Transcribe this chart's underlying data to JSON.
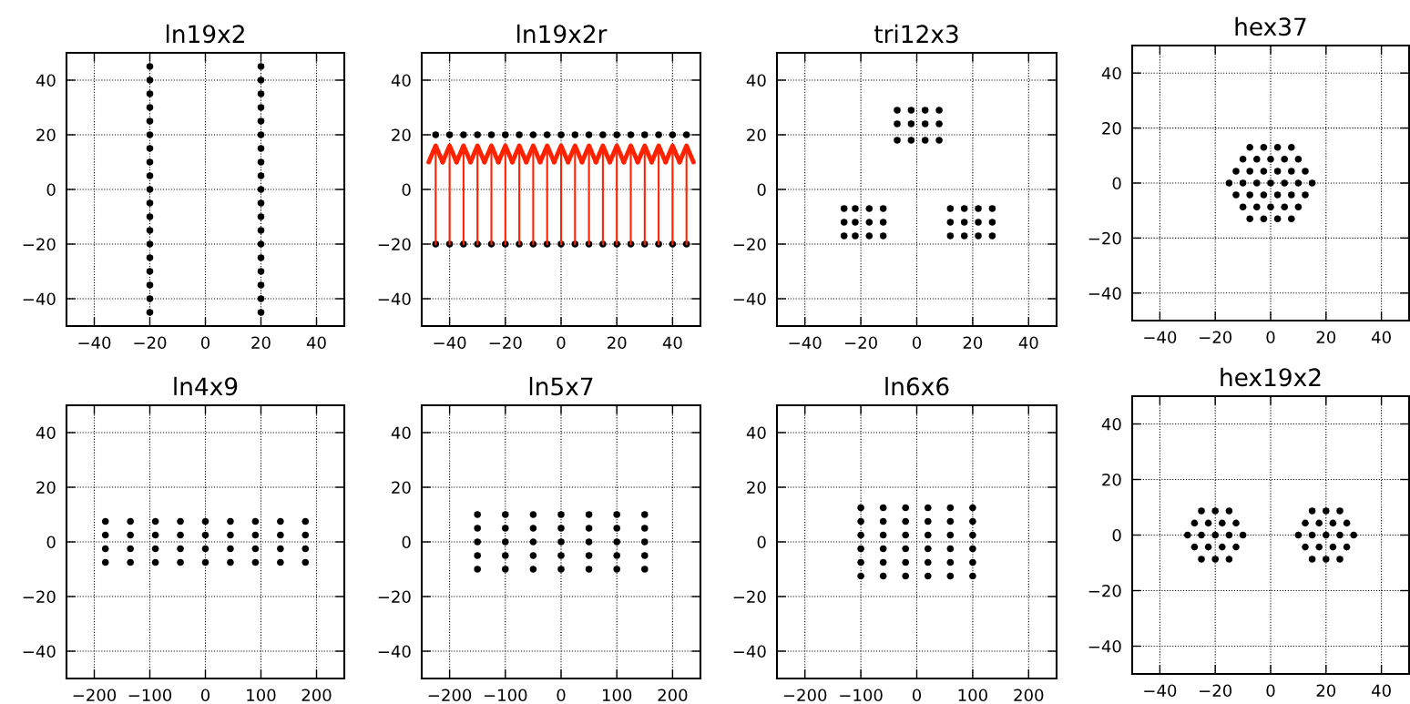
{
  "chart_data": [
    {
      "type": "scatter",
      "title": "ln19x2",
      "xlim": [
        -50,
        50
      ],
      "ylim": [
        -50,
        50
      ],
      "xticks": [
        -40,
        -20,
        0,
        20,
        40
      ],
      "yticks": [
        -40,
        -20,
        0,
        20,
        40
      ],
      "grid": true,
      "marker": "circle",
      "series": [
        {
          "color": "#000000",
          "x": [
            -20,
            -20,
            -20,
            -20,
            -20,
            -20,
            -20,
            -20,
            -20,
            -20,
            -20,
            -20,
            -20,
            -20,
            -20,
            -20,
            -20,
            -20,
            -20,
            20,
            20,
            20,
            20,
            20,
            20,
            20,
            20,
            20,
            20,
            20,
            20,
            20,
            20,
            20,
            20,
            20,
            20,
            20
          ],
          "values": [
            -45,
            -40,
            -35,
            -30,
            -25,
            -20,
            -15,
            -10,
            -5,
            0,
            5,
            10,
            15,
            20,
            25,
            30,
            35,
            40,
            45,
            -45,
            -40,
            -35,
            -30,
            -25,
            -20,
            -15,
            -10,
            -5,
            0,
            5,
            10,
            15,
            20,
            25,
            30,
            35,
            40,
            45
          ]
        }
      ]
    },
    {
      "type": "scatter",
      "title": "ln19x2r",
      "xlim": [
        -50,
        50
      ],
      "ylim": [
        -50,
        50
      ],
      "xticks": [
        -40,
        -20,
        0,
        20,
        40
      ],
      "yticks": [
        -40,
        -20,
        0,
        20,
        40
      ],
      "grid": true,
      "marker": "circle",
      "series": [
        {
          "color": "#000000",
          "x": [
            -45,
            -40,
            -35,
            -30,
            -25,
            -20,
            -15,
            -10,
            -5,
            0,
            5,
            10,
            15,
            20,
            25,
            30,
            35,
            40,
            45,
            -45,
            -40,
            -35,
            -30,
            -25,
            -20,
            -15,
            -10,
            -5,
            0,
            5,
            10,
            15,
            20,
            25,
            30,
            35,
            40,
            45
          ],
          "values": [
            20,
            20,
            20,
            20,
            20,
            20,
            20,
            20,
            20,
            20,
            20,
            20,
            20,
            20,
            20,
            20,
            20,
            20,
            20,
            -20,
            -20,
            -20,
            -20,
            -20,
            -20,
            -20,
            -20,
            -20,
            -20,
            -20,
            -20,
            -20,
            -20,
            -20,
            -20,
            -20,
            -20,
            -20
          ]
        },
        {
          "type": "line",
          "color": "#ff2200",
          "marker": "none",
          "x": [
            -45,
            -45,
            null,
            -40,
            -40,
            null,
            -35,
            -35,
            null,
            -30,
            -30,
            null,
            -25,
            -25,
            null,
            -20,
            -20,
            null,
            -15,
            -15,
            null,
            -10,
            -10,
            null,
            -5,
            -5,
            null,
            0,
            0,
            null,
            5,
            5,
            null,
            10,
            10,
            null,
            15,
            15,
            null,
            20,
            20,
            null,
            25,
            25,
            null,
            30,
            30,
            null,
            35,
            35,
            null,
            40,
            40,
            null,
            45,
            45
          ],
          "values": [
            -20,
            16,
            null,
            -20,
            16,
            null,
            -20,
            16,
            null,
            -20,
            16,
            null,
            -20,
            16,
            null,
            -20,
            16,
            null,
            -20,
            16,
            null,
            -20,
            16,
            null,
            -20,
            16,
            null,
            -20,
            16,
            null,
            -20,
            16,
            null,
            -20,
            16,
            null,
            -20,
            16,
            null,
            -20,
            16,
            null,
            -20,
            16,
            null,
            -20,
            16,
            null,
            -20,
            16,
            null,
            -20,
            16,
            null,
            -20,
            16
          ]
        }
      ]
    },
    {
      "type": "scatter",
      "title": "tri12x3",
      "xlim": [
        -50,
        50
      ],
      "ylim": [
        -50,
        50
      ],
      "xticks": [
        -40,
        -20,
        0,
        20,
        40
      ],
      "yticks": [
        -40,
        -20,
        0,
        20,
        40
      ],
      "grid": true,
      "marker": "circle",
      "series": [
        {
          "color": "#000000",
          "x": [
            -7,
            -2,
            3,
            8,
            -7,
            -2,
            3,
            8,
            -7,
            -2,
            3,
            8,
            -26,
            -22,
            -17,
            -12,
            -26,
            -22,
            -17,
            -12,
            -26,
            -22,
            -17,
            -12,
            12,
            17,
            22,
            27,
            12,
            17,
            22,
            27,
            12,
            17,
            22,
            27
          ],
          "values": [
            29,
            29,
            29,
            29,
            24,
            24,
            24,
            24,
            18,
            18,
            18,
            18,
            -7,
            -7,
            -7,
            -7,
            -12,
            -12,
            -12,
            -12,
            -17,
            -17,
            -17,
            -17,
            -7,
            -7,
            -7,
            -7,
            -12,
            -12,
            -12,
            -12,
            -17,
            -17,
            -17,
            -17
          ]
        }
      ]
    },
    {
      "type": "scatter",
      "title": "hex37",
      "xlim": [
        -50,
        50
      ],
      "ylim": [
        -50,
        50
      ],
      "xticks": [
        -40,
        -20,
        0,
        20,
        40
      ],
      "yticks": [
        -40,
        -20,
        0,
        20,
        40
      ],
      "grid": true,
      "marker": "circle",
      "series": [
        {
          "color": "#000000",
          "x": [
            -7.5,
            -2.5,
            2.5,
            7.5,
            -10,
            -5,
            0,
            5,
            10,
            -12.5,
            -7.5,
            -2.5,
            2.5,
            7.5,
            12.5,
            -15,
            -10,
            -5,
            0,
            5,
            10,
            15,
            -12.5,
            -7.5,
            -2.5,
            2.5,
            7.5,
            12.5,
            -10,
            -5,
            0,
            5,
            10,
            -7.5,
            -2.5,
            2.5,
            7.5
          ],
          "values": [
            13,
            13,
            13,
            13,
            8.7,
            8.7,
            8.7,
            8.7,
            8.7,
            4.3,
            4.3,
            4.3,
            4.3,
            4.3,
            4.3,
            0,
            0,
            0,
            0,
            0,
            0,
            0,
            -4.3,
            -4.3,
            -4.3,
            -4.3,
            -4.3,
            -4.3,
            -8.7,
            -8.7,
            -8.7,
            -8.7,
            -8.7,
            -13,
            -13,
            -13,
            -13
          ]
        }
      ]
    },
    {
      "type": "scatter",
      "title": "ln4x9",
      "xlim": [
        -250,
        250
      ],
      "ylim": [
        -50,
        50
      ],
      "xticks": [
        -200,
        -100,
        0,
        100,
        200
      ],
      "yticks": [
        -40,
        -20,
        0,
        20,
        40
      ],
      "grid": true,
      "marker": "circle",
      "series": [
        {
          "color": "#000000",
          "x": [
            -180,
            -135,
            -90,
            -45,
            0,
            45,
            90,
            135,
            180,
            -180,
            -135,
            -90,
            -45,
            0,
            45,
            90,
            135,
            180,
            -180,
            -135,
            -90,
            -45,
            0,
            45,
            90,
            135,
            180,
            -180,
            -135,
            -90,
            -45,
            0,
            45,
            90,
            135,
            180
          ],
          "values": [
            7.5,
            7.5,
            7.5,
            7.5,
            7.5,
            7.5,
            7.5,
            7.5,
            7.5,
            2.5,
            2.5,
            2.5,
            2.5,
            2.5,
            2.5,
            2.5,
            2.5,
            2.5,
            -2.5,
            -2.5,
            -2.5,
            -2.5,
            -2.5,
            -2.5,
            -2.5,
            -2.5,
            -2.5,
            -7.5,
            -7.5,
            -7.5,
            -7.5,
            -7.5,
            -7.5,
            -7.5,
            -7.5,
            -7.5
          ]
        }
      ]
    },
    {
      "type": "scatter",
      "title": "ln5x7",
      "xlim": [
        -250,
        250
      ],
      "ylim": [
        -50,
        50
      ],
      "xticks": [
        -200,
        -100,
        0,
        100,
        200
      ],
      "yticks": [
        -40,
        -20,
        0,
        20,
        40
      ],
      "grid": true,
      "marker": "circle",
      "series": [
        {
          "color": "#000000",
          "x": [
            -150,
            -100,
            -50,
            0,
            50,
            100,
            150,
            -150,
            -100,
            -50,
            0,
            50,
            100,
            150,
            -150,
            -100,
            -50,
            0,
            50,
            100,
            150,
            -150,
            -100,
            -50,
            0,
            50,
            100,
            150,
            -150,
            -100,
            -50,
            0,
            50,
            100,
            150
          ],
          "values": [
            10,
            10,
            10,
            10,
            10,
            10,
            10,
            5,
            5,
            5,
            5,
            5,
            5,
            5,
            0,
            0,
            0,
            0,
            0,
            0,
            0,
            -5,
            -5,
            -5,
            -5,
            -5,
            -5,
            -5,
            -10,
            -10,
            -10,
            -10,
            -10,
            -10,
            -10
          ]
        }
      ]
    },
    {
      "type": "scatter",
      "title": "ln6x6",
      "xlim": [
        -250,
        250
      ],
      "ylim": [
        -50,
        50
      ],
      "xticks": [
        -200,
        -100,
        0,
        100,
        200
      ],
      "yticks": [
        -40,
        -20,
        0,
        20,
        40
      ],
      "grid": true,
      "marker": "circle",
      "series": [
        {
          "color": "#000000",
          "x": [
            -100,
            -60,
            -20,
            20,
            60,
            100,
            -100,
            -60,
            -20,
            20,
            60,
            100,
            -100,
            -60,
            -20,
            20,
            60,
            100,
            -100,
            -60,
            -20,
            20,
            60,
            100,
            -100,
            -60,
            -20,
            20,
            60,
            100,
            -100,
            -60,
            -20,
            20,
            60,
            100
          ],
          "values": [
            12.5,
            12.5,
            12.5,
            12.5,
            12.5,
            12.5,
            7.5,
            7.5,
            7.5,
            7.5,
            7.5,
            7.5,
            2.5,
            2.5,
            2.5,
            2.5,
            2.5,
            2.5,
            -2.5,
            -2.5,
            -2.5,
            -2.5,
            -2.5,
            -2.5,
            -7.5,
            -7.5,
            -7.5,
            -7.5,
            -7.5,
            -7.5,
            -12.5,
            -12.5,
            -12.5,
            -12.5,
            -12.5,
            -12.5
          ]
        }
      ]
    },
    {
      "type": "scatter",
      "title": "hex19x2",
      "xlim": [
        -50,
        50
      ],
      "ylim": [
        -50,
        50
      ],
      "xticks": [
        -40,
        -20,
        0,
        20,
        40
      ],
      "yticks": [
        -40,
        -20,
        0,
        20,
        40
      ],
      "grid": true,
      "marker": "circle",
      "series": [
        {
          "color": "#000000",
          "x": [
            -25,
            -20,
            -15,
            -27.5,
            -22.5,
            -17.5,
            -12.5,
            -30,
            -25,
            -20,
            -15,
            -10,
            -27.5,
            -22.5,
            -17.5,
            -12.5,
            -25,
            -20,
            -15,
            15,
            20,
            25,
            12.5,
            17.5,
            22.5,
            27.5,
            10,
            15,
            20,
            25,
            30,
            12.5,
            17.5,
            22.5,
            27.5,
            15,
            20,
            25
          ],
          "values": [
            8.7,
            8.7,
            8.7,
            4.3,
            4.3,
            4.3,
            4.3,
            0,
            0,
            0,
            0,
            0,
            -4.3,
            -4.3,
            -4.3,
            -4.3,
            -8.7,
            -8.7,
            -8.7,
            8.7,
            8.7,
            8.7,
            4.3,
            4.3,
            4.3,
            4.3,
            0,
            0,
            0,
            0,
            0,
            -4.3,
            -4.3,
            -4.3,
            -4.3,
            -8.7,
            -8.7,
            -8.7
          ]
        }
      ]
    }
  ]
}
